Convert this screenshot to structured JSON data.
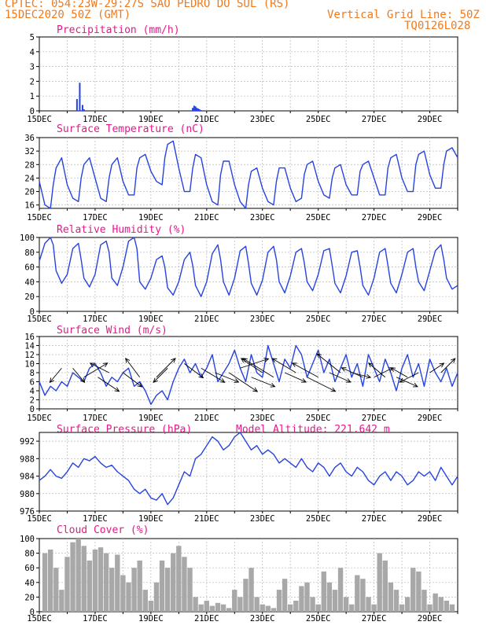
{
  "header": {
    "line1": "CPTEC:  054:23W-29:27S  SAO PEDRO DO SUL (RS)",
    "line2_left": "15DEC2020 50Z (GMT)",
    "line2_right": "Vertical Grid Line: 50Z",
    "line3_right": "TQ0126L028"
  },
  "x_axis": {
    "labels": [
      "15DEC",
      "17DEC",
      "19DEC",
      "21DEC",
      "23DEC",
      "25DEC",
      "27DEC",
      "29DEC"
    ],
    "label_days": [
      0,
      2,
      4,
      6,
      8,
      10,
      12,
      14
    ],
    "days": 15
  },
  "colors": {
    "line": "#2643e0",
    "bar_precip": "#2643e0",
    "bar_cloud": "#a8a8a8",
    "title": "#e8178a",
    "header": "#f07a1e"
  },
  "chart_data": [
    {
      "id": "precip",
      "type": "bar",
      "title": "Precipitation (mm/h)",
      "ylim": [
        0,
        5
      ],
      "yticks": [
        0,
        1,
        2,
        3,
        4,
        5
      ],
      "x": [
        1.35,
        1.45,
        1.55,
        1.6,
        5.5,
        5.55,
        5.6,
        5.65,
        5.7,
        5.75,
        5.8
      ],
      "values": [
        0.8,
        1.9,
        0.4,
        0.1,
        0.2,
        0.35,
        0.3,
        0.2,
        0.15,
        0.1,
        0.05
      ]
    },
    {
      "id": "temp",
      "type": "line",
      "title": "Surface Temperature (nC)",
      "ylim": [
        15,
        36
      ],
      "yticks": [
        16,
        20,
        24,
        28,
        32,
        36
      ],
      "x": [
        0,
        0.2,
        0.4,
        0.5,
        0.6,
        0.8,
        1.0,
        1.2,
        1.4,
        1.5,
        1.6,
        1.8,
        2.0,
        2.2,
        2.4,
        2.5,
        2.6,
        2.8,
        3.0,
        3.2,
        3.4,
        3.5,
        3.6,
        3.8,
        4.0,
        4.2,
        4.4,
        4.5,
        4.6,
        4.8,
        5.0,
        5.2,
        5.4,
        5.5,
        5.6,
        5.8,
        6.0,
        6.2,
        6.4,
        6.5,
        6.6,
        6.8,
        7.0,
        7.2,
        7.4,
        7.5,
        7.6,
        7.8,
        8.0,
        8.2,
        8.4,
        8.5,
        8.6,
        8.8,
        9.0,
        9.2,
        9.4,
        9.5,
        9.6,
        9.8,
        10.0,
        10.2,
        10.4,
        10.5,
        10.6,
        10.8,
        11.0,
        11.2,
        11.4,
        11.5,
        11.6,
        11.8,
        12.0,
        12.2,
        12.4,
        12.5,
        12.6,
        12.8,
        13.0,
        13.2,
        13.4,
        13.5,
        13.6,
        13.8,
        14.0,
        14.2,
        14.4,
        14.5,
        14.6,
        14.8,
        15.0
      ],
      "values": [
        23,
        16,
        15,
        22,
        27,
        30,
        22,
        18,
        17,
        24,
        28,
        30,
        24,
        18,
        17,
        24,
        28,
        30,
        23,
        19,
        19,
        27,
        30,
        31,
        26,
        23,
        22,
        30,
        34,
        35,
        27,
        20,
        20,
        27,
        31,
        30,
        22,
        17,
        16,
        25,
        29,
        29,
        22,
        17,
        15,
        22,
        26,
        27,
        21,
        17,
        16,
        23,
        27,
        27,
        21,
        17,
        18,
        25,
        28,
        29,
        23,
        19,
        18,
        24,
        27,
        28,
        22,
        19,
        19,
        26,
        28,
        29,
        24,
        19,
        19,
        27,
        30,
        31,
        24,
        20,
        20,
        28,
        31,
        32,
        25,
        21,
        21,
        28,
        32,
        33,
        30
      ]
    },
    {
      "id": "rh",
      "type": "line",
      "title": "Relative Humidity (%)",
      "ylim": [
        0,
        100
      ],
      "yticks": [
        0,
        20,
        40,
        60,
        80,
        100
      ],
      "x": [
        0,
        0.2,
        0.4,
        0.5,
        0.6,
        0.8,
        1.0,
        1.2,
        1.4,
        1.5,
        1.6,
        1.8,
        2.0,
        2.2,
        2.4,
        2.5,
        2.6,
        2.8,
        3.0,
        3.2,
        3.4,
        3.5,
        3.6,
        3.8,
        4.0,
        4.2,
        4.4,
        4.5,
        4.6,
        4.8,
        5.0,
        5.2,
        5.4,
        5.5,
        5.6,
        5.8,
        6.0,
        6.2,
        6.4,
        6.5,
        6.6,
        6.8,
        7.0,
        7.2,
        7.4,
        7.5,
        7.6,
        7.8,
        8.0,
        8.2,
        8.4,
        8.5,
        8.6,
        8.8,
        9.0,
        9.2,
        9.4,
        9.5,
        9.6,
        9.8,
        10.0,
        10.2,
        10.4,
        10.5,
        10.6,
        10.8,
        11.0,
        11.2,
        11.4,
        11.5,
        11.6,
        11.8,
        12.0,
        12.2,
        12.4,
        12.5,
        12.6,
        12.8,
        13.0,
        13.2,
        13.4,
        13.5,
        13.6,
        13.8,
        14.0,
        14.2,
        14.4,
        14.5,
        14.6,
        14.8,
        15.0
      ],
      "values": [
        68,
        92,
        100,
        90,
        55,
        38,
        50,
        85,
        92,
        70,
        45,
        33,
        50,
        90,
        95,
        80,
        45,
        35,
        60,
        95,
        100,
        85,
        40,
        30,
        45,
        70,
        75,
        60,
        32,
        22,
        40,
        70,
        80,
        62,
        35,
        20,
        40,
        78,
        90,
        70,
        40,
        22,
        45,
        82,
        88,
        65,
        38,
        22,
        42,
        80,
        88,
        70,
        40,
        25,
        48,
        80,
        85,
        66,
        40,
        28,
        50,
        82,
        85,
        62,
        38,
        25,
        48,
        80,
        82,
        60,
        35,
        22,
        45,
        80,
        85,
        62,
        38,
        25,
        50,
        80,
        85,
        60,
        40,
        28,
        55,
        82,
        90,
        70,
        45,
        30,
        35
      ]
    },
    {
      "id": "wind",
      "type": "line",
      "title": "Surface Wind (m/s)",
      "ylim": [
        0,
        16
      ],
      "yticks": [
        0,
        2,
        4,
        6,
        8,
        10,
        12,
        14,
        16
      ],
      "x": [
        0,
        0.2,
        0.4,
        0.6,
        0.8,
        1.0,
        1.2,
        1.4,
        1.6,
        1.8,
        2.0,
        2.2,
        2.4,
        2.6,
        2.8,
        3.0,
        3.2,
        3.4,
        3.6,
        3.8,
        4.0,
        4.2,
        4.4,
        4.6,
        4.8,
        5.0,
        5.2,
        5.4,
        5.6,
        5.8,
        6.0,
        6.2,
        6.4,
        6.6,
        6.8,
        7.0,
        7.2,
        7.4,
        7.6,
        7.8,
        8.0,
        8.2,
        8.4,
        8.6,
        8.8,
        9.0,
        9.2,
        9.4,
        9.6,
        9.8,
        10.0,
        10.2,
        10.4,
        10.6,
        10.8,
        11.0,
        11.2,
        11.4,
        11.6,
        11.8,
        12.0,
        12.2,
        12.4,
        12.6,
        12.8,
        13.0,
        13.2,
        13.4,
        13.6,
        13.8,
        14.0,
        14.2,
        14.4,
        14.6,
        14.8,
        15.0
      ],
      "values": [
        6,
        3,
        5,
        4,
        6,
        5,
        8,
        7,
        6,
        9,
        10,
        8,
        5,
        7,
        6,
        8,
        9,
        5,
        6,
        4,
        1,
        3,
        4,
        2,
        6,
        9,
        11,
        8,
        10,
        7,
        9,
        12,
        6,
        8,
        10,
        13,
        9,
        6,
        12,
        8,
        7,
        14,
        10,
        6,
        11,
        9,
        14,
        12,
        7,
        10,
        13,
        8,
        11,
        6,
        9,
        12,
        7,
        10,
        5,
        12,
        9,
        6,
        11,
        8,
        4,
        9,
        12,
        7,
        10,
        5,
        11,
        8,
        6,
        9,
        5,
        8
      ],
      "barbs_note": "wind direction arrows"
    },
    {
      "id": "press",
      "type": "line",
      "title": "Surface Pressure (hPa)",
      "annotation": "Model Altitude: 221.642 m",
      "ylim": [
        976,
        994
      ],
      "yticks": [
        976,
        980,
        984,
        988,
        992
      ],
      "x": [
        0,
        0.2,
        0.4,
        0.6,
        0.8,
        1.0,
        1.2,
        1.4,
        1.6,
        1.8,
        2.0,
        2.2,
        2.4,
        2.6,
        2.8,
        3.0,
        3.2,
        3.4,
        3.6,
        3.8,
        4.0,
        4.2,
        4.4,
        4.6,
        4.8,
        5.0,
        5.2,
        5.4,
        5.6,
        5.8,
        6.0,
        6.2,
        6.4,
        6.6,
        6.8,
        7.0,
        7.2,
        7.4,
        7.6,
        7.8,
        8.0,
        8.2,
        8.4,
        8.6,
        8.8,
        9.0,
        9.2,
        9.4,
        9.6,
        9.8,
        10.0,
        10.2,
        10.4,
        10.6,
        10.8,
        11.0,
        11.2,
        11.4,
        11.6,
        11.8,
        12.0,
        12.2,
        12.4,
        12.6,
        12.8,
        13.0,
        13.2,
        13.4,
        13.6,
        13.8,
        14.0,
        14.2,
        14.4,
        14.6,
        14.8,
        15.0
      ],
      "values": [
        983,
        984,
        985.5,
        984,
        983.5,
        985,
        987,
        986,
        988,
        987.5,
        988.5,
        987,
        986,
        986.5,
        985,
        984,
        983,
        981,
        980,
        981,
        979,
        978.5,
        980,
        977.5,
        979,
        982,
        985,
        984,
        988,
        989,
        991,
        993,
        992,
        990,
        991,
        993,
        994,
        992,
        990,
        991,
        989,
        990,
        989,
        987,
        988,
        987,
        986,
        988,
        986,
        985,
        987,
        986,
        984,
        986,
        987,
        985,
        984,
        986,
        985,
        983,
        982,
        984,
        985,
        983,
        985,
        984,
        982,
        983,
        985,
        984,
        985,
        983,
        986,
        984,
        982,
        984
      ]
    },
    {
      "id": "cloud",
      "type": "bar",
      "title": "Cloud Cover (%)",
      "ylim": [
        0,
        100
      ],
      "yticks": [
        0,
        20,
        40,
        60,
        80,
        100
      ],
      "x": [
        0.2,
        0.4,
        0.6,
        0.8,
        1.0,
        1.2,
        1.4,
        1.6,
        1.8,
        2.0,
        2.2,
        2.4,
        2.6,
        2.8,
        3.0,
        3.2,
        3.4,
        3.6,
        3.8,
        4.0,
        4.2,
        4.4,
        4.6,
        4.8,
        5.0,
        5.2,
        5.4,
        5.6,
        5.8,
        6.0,
        6.2,
        6.4,
        6.6,
        6.8,
        7.0,
        7.2,
        7.4,
        7.6,
        7.8,
        8.0,
        8.2,
        8.4,
        8.6,
        8.8,
        9.0,
        9.2,
        9.4,
        9.6,
        9.8,
        10.0,
        10.2,
        10.4,
        10.6,
        10.8,
        11.0,
        11.2,
        11.4,
        11.6,
        11.8,
        12.0,
        12.2,
        12.4,
        12.6,
        12.8,
        13.0,
        13.2,
        13.4,
        13.6,
        13.8,
        14.0,
        14.2,
        14.4,
        14.6,
        14.8
      ],
      "values": [
        80,
        85,
        60,
        30,
        75,
        95,
        100,
        90,
        70,
        85,
        88,
        80,
        60,
        78,
        50,
        40,
        60,
        70,
        30,
        15,
        40,
        70,
        60,
        80,
        90,
        75,
        60,
        20,
        10,
        15,
        8,
        12,
        10,
        5,
        30,
        20,
        45,
        60,
        20,
        10,
        8,
        5,
        30,
        45,
        10,
        15,
        35,
        40,
        20,
        10,
        55,
        40,
        30,
        60,
        20,
        10,
        50,
        45,
        20,
        10,
        80,
        70,
        40,
        30,
        10,
        20,
        60,
        55,
        30,
        10,
        25,
        20,
        15,
        10
      ]
    }
  ]
}
